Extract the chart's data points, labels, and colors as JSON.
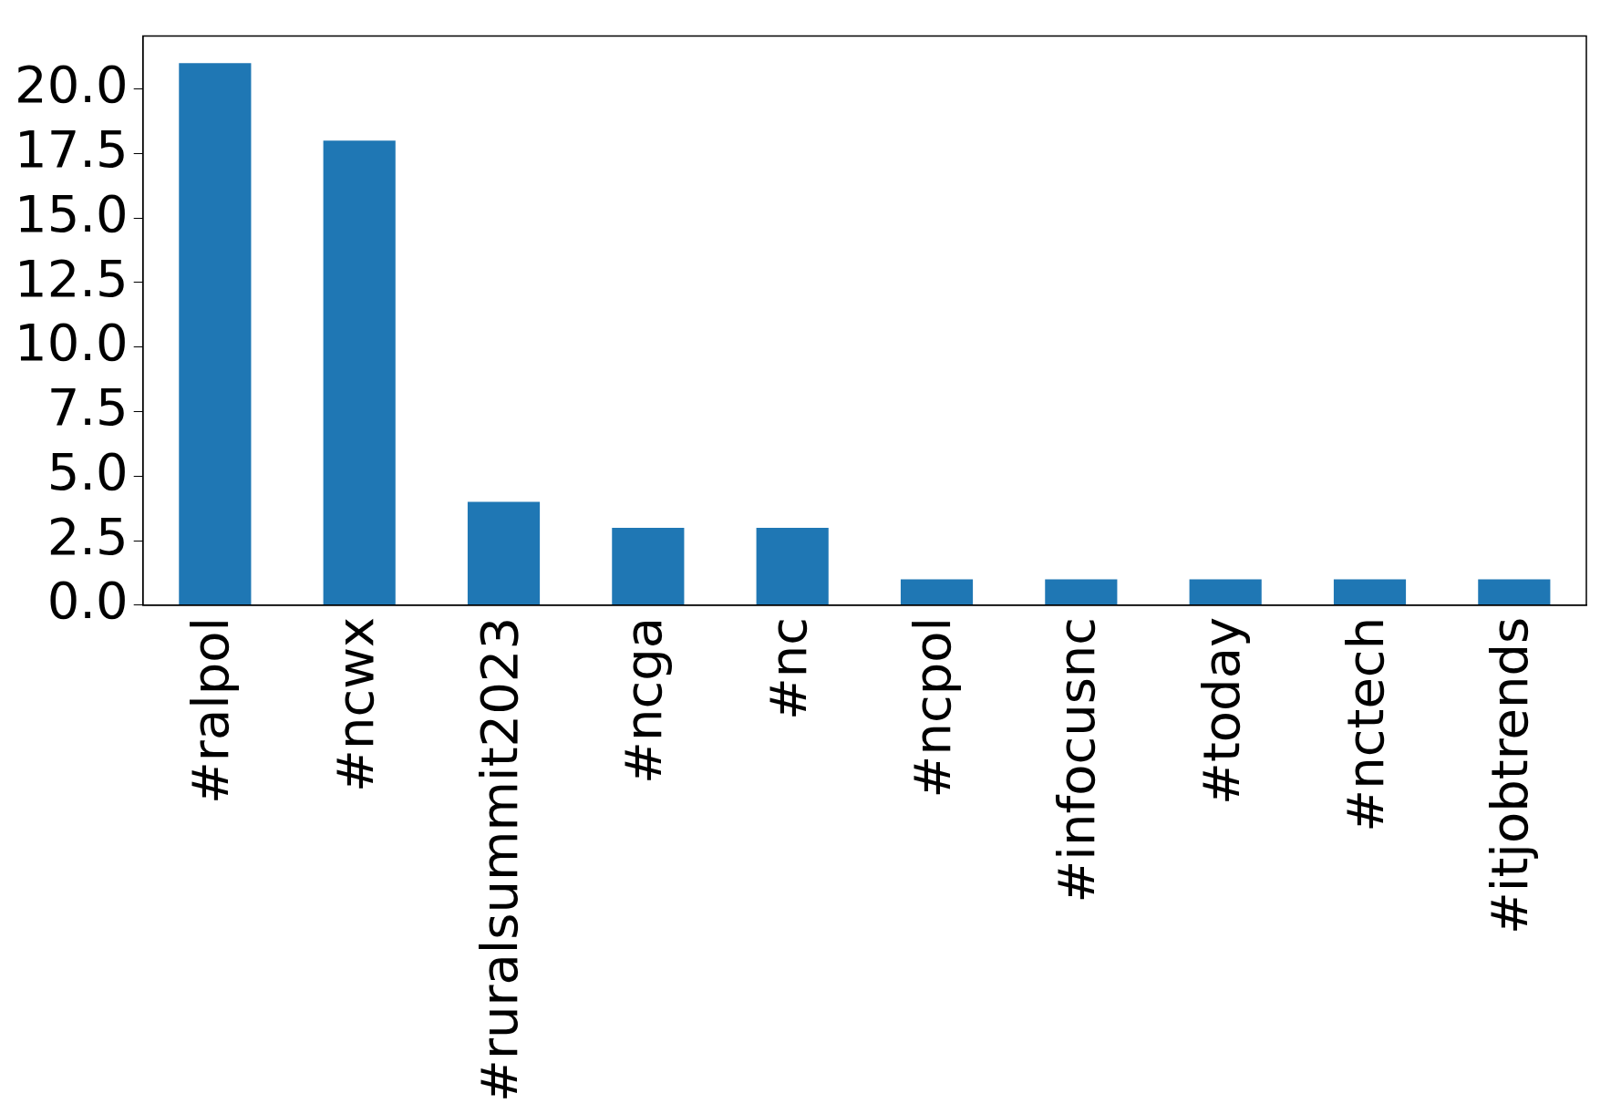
{
  "chart_data": {
    "type": "bar",
    "categories": [
      "#ralpol",
      "#ncwx",
      "#ruralsummit2023",
      "#ncga",
      "#nc",
      "#ncpol",
      "#infocusnc",
      "#today",
      "#nctech",
      "#itjobtrends"
    ],
    "values": [
      21,
      18,
      4,
      3,
      3,
      1,
      1,
      1,
      1,
      1
    ],
    "color": "#1f77b4",
    "ylim": [
      0,
      22.05
    ],
    "yticks": [
      {
        "value": 0,
        "label": "0.0"
      },
      {
        "value": 2.5,
        "label": "2.5"
      },
      {
        "value": 5,
        "label": "5.0"
      },
      {
        "value": 7.5,
        "label": "7.5"
      },
      {
        "value": 10,
        "label": "10.0"
      },
      {
        "value": 12.5,
        "label": "12.5"
      },
      {
        "value": 15,
        "label": "15.0"
      },
      {
        "value": 17.5,
        "label": "17.5"
      },
      {
        "value": 20,
        "label": "20.0"
      }
    ],
    "legend": false
  }
}
